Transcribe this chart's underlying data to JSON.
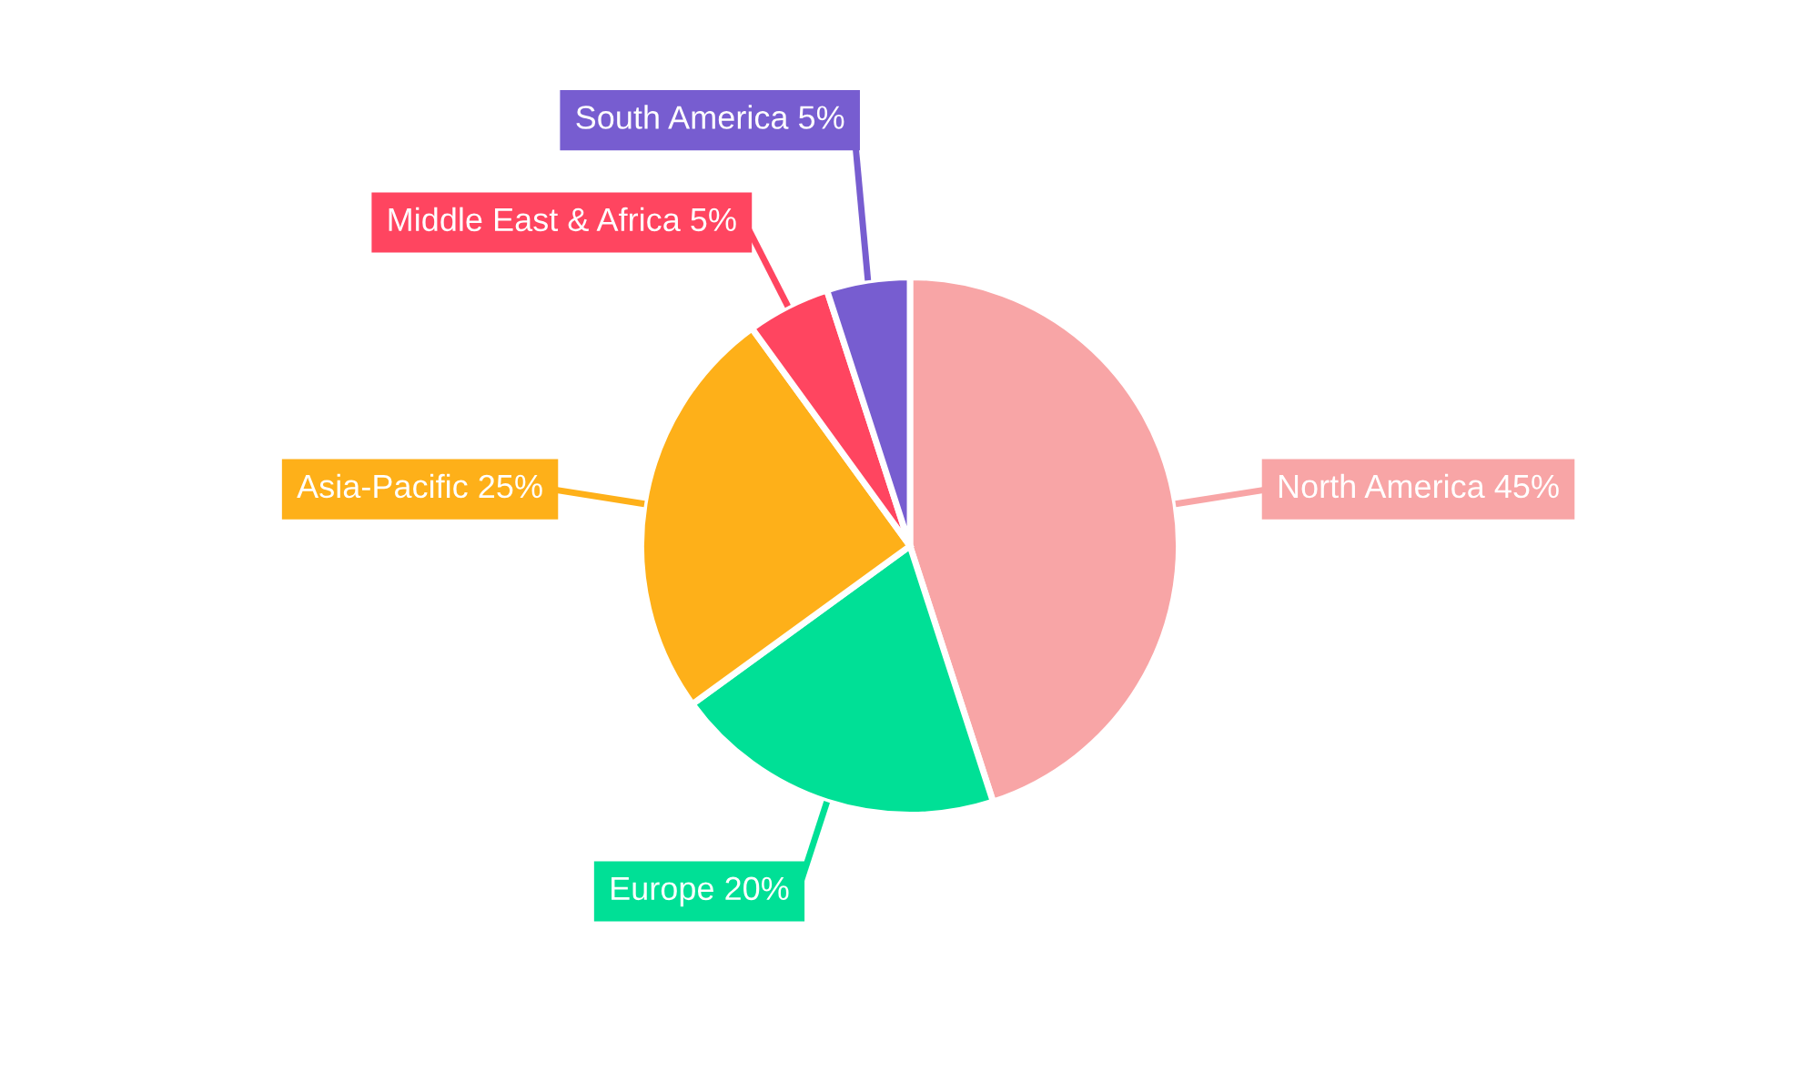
{
  "chart_data": {
    "type": "pie",
    "categories": [
      "North America",
      "Europe",
      "Asia-Pacific",
      "Middle East & Africa",
      "South America"
    ],
    "values": [
      45,
      20,
      25,
      5,
      5
    ],
    "value_labels": [
      "45%",
      "20%",
      "25%",
      "5%",
      "5%"
    ],
    "colors": [
      "#f8a5a6",
      "#00e096",
      "#feb019",
      "#ff4560",
      "#775dd0"
    ],
    "legend": false
  }
}
